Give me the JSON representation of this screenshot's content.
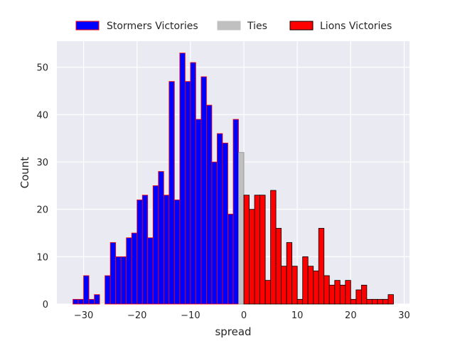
{
  "chart_data": {
    "type": "bar",
    "subtype": "histogram",
    "title": "",
    "xlabel": "spread",
    "ylabel": "Count",
    "xlim": [
      -35,
      31
    ],
    "ylim": [
      0,
      55.5
    ],
    "bin_width": 1,
    "xticks": [
      -30,
      -20,
      -10,
      0,
      10,
      20,
      30
    ],
    "xtick_labels": [
      "−30",
      "−20",
      "−10",
      "0",
      "10",
      "20",
      "30"
    ],
    "yticks": [
      0,
      10,
      20,
      30,
      40,
      50
    ],
    "ytick_labels": [
      "0",
      "10",
      "20",
      "30",
      "40",
      "50"
    ],
    "grid": true,
    "background": "#eaeaf2",
    "legend_position": "top-center",
    "series": [
      {
        "name": "Stormers Victories",
        "color": "#0000ff",
        "edgecolor": "#ff0000",
        "x": [
          -32,
          -31,
          -30,
          -29,
          -28,
          -27,
          -26,
          -25,
          -24,
          -23,
          -22,
          -21,
          -20,
          -19,
          -18,
          -17,
          -16,
          -15,
          -14,
          -13,
          -12,
          -11,
          -10,
          -9,
          -8,
          -7,
          -6,
          -5,
          -4,
          -3,
          -2,
          -1
        ],
        "values": [
          1,
          1,
          6,
          1,
          2,
          0,
          6,
          13,
          10,
          10,
          14,
          15,
          22,
          23,
          14,
          25,
          28,
          23,
          47,
          22,
          53,
          47,
          51,
          39,
          48,
          42,
          30,
          36,
          34,
          19,
          39,
          0
        ]
      },
      {
        "name": "Ties",
        "color": "#c0c0c0",
        "edgecolor": "#8c8c8c",
        "x": [
          -1
        ],
        "values": [
          32
        ]
      },
      {
        "name": "Lions Victories",
        "color": "#ff0000",
        "edgecolor": "#000000",
        "x": [
          0,
          1,
          2,
          3,
          4,
          5,
          6,
          7,
          8,
          9,
          10,
          11,
          12,
          13,
          14,
          15,
          16,
          17,
          18,
          19,
          20,
          21,
          22,
          23,
          24,
          25,
          26,
          27,
          28
        ],
        "values": [
          23,
          20,
          23,
          23,
          5,
          24,
          16,
          8,
          13,
          8,
          1,
          10,
          8,
          7,
          16,
          6,
          4,
          5,
          4,
          5,
          1,
          3,
          4,
          1,
          1,
          1,
          1,
          2,
          0
        ]
      }
    ]
  }
}
